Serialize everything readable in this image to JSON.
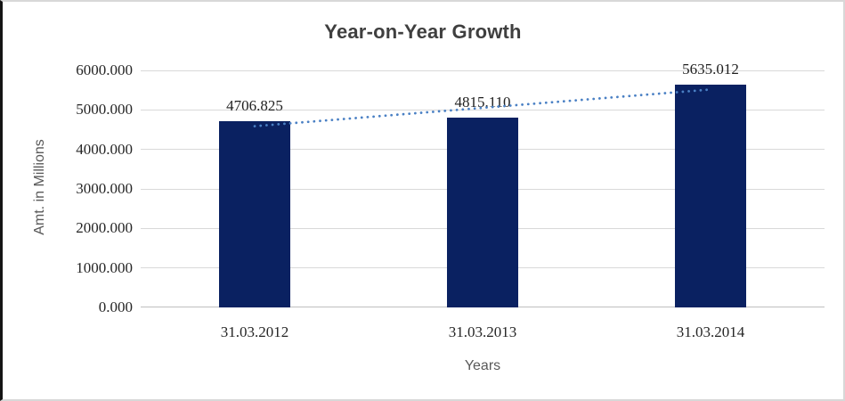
{
  "chart_data": {
    "type": "bar",
    "title": "Year-on-Year Growth",
    "xlabel": "Years",
    "ylabel": "Amt. in Millions",
    "categories": [
      "31.03.2012",
      "31.03.2013",
      "31.03.2014"
    ],
    "values": [
      4706.825,
      4815.11,
      5635.012
    ],
    "data_labels": [
      "4706.825",
      "4815.110",
      "5635.012"
    ],
    "ylim": [
      0,
      6000
    ],
    "ytick_step": 1000,
    "ytick_labels": [
      "0.000",
      "1000.000",
      "2000.000",
      "3000.000",
      "4000.000",
      "5000.000",
      "6000.000"
    ],
    "grid": true,
    "legend": "none",
    "bar_color": "#0a2161",
    "trendline": {
      "fit": "linear",
      "style": "dotted",
      "color": "#4a80c4"
    },
    "colors": {
      "title_text": "#3f3f3f",
      "axis_title_text": "#595959",
      "tick_label_text": "#262626",
      "data_label_text": "#1f1f1f",
      "gridline": "#d9d9d9",
      "axis_line": "#bfbfbf",
      "frame_border": "#d8d8d8",
      "frame_left_border": "#141414",
      "background": "#ffffff"
    }
  }
}
